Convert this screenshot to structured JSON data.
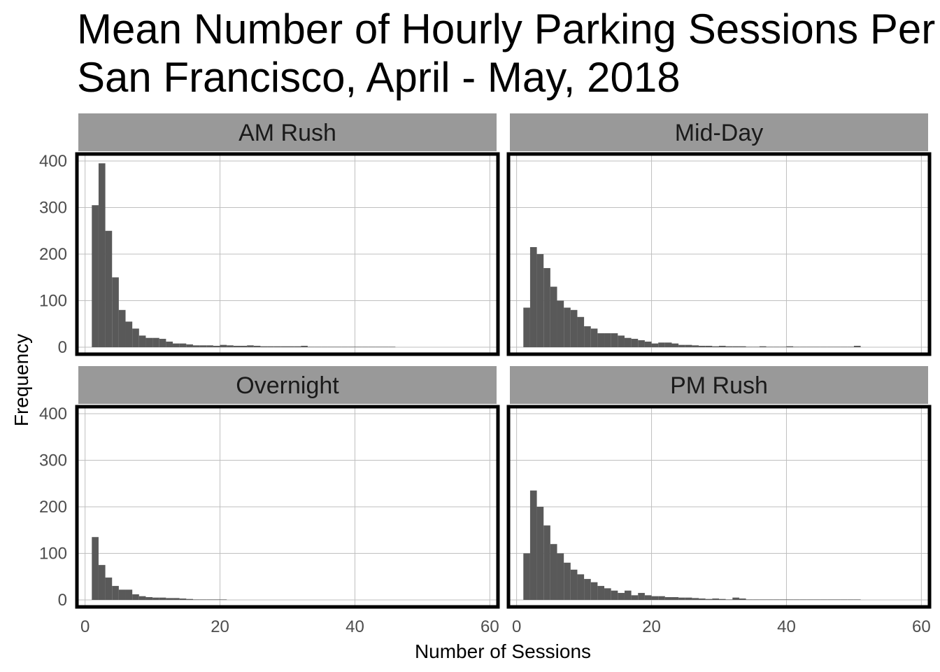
{
  "title_line1": "Mean Number of Hourly Parking Sessions Per Meter",
  "title_line2": "San Francisco, April - May, 2018",
  "colors": {
    "bar": "#595959",
    "strip": "#999999",
    "grid": "#bfbfbf",
    "border": "#000000"
  },
  "chart_data": {
    "type": "bar",
    "xlabel": "Number of Sessions",
    "ylabel": "Frequency",
    "xlim": [
      -1,
      61
    ],
    "ylim": [
      -12,
      412
    ],
    "x_ticks": [
      0,
      20,
      40,
      60
    ],
    "y_ticks": [
      0,
      100,
      200,
      300,
      400
    ],
    "bin_width": 1,
    "bin_starts": [
      1,
      2,
      3,
      4,
      5,
      6,
      7,
      8,
      9,
      10,
      11,
      12,
      13,
      14,
      15,
      16,
      17,
      18,
      19,
      20,
      21,
      22,
      23,
      24,
      25,
      26,
      27,
      28,
      29,
      30,
      31,
      32,
      33,
      34,
      35,
      36,
      37,
      38,
      39,
      40,
      41,
      42,
      43,
      44,
      45,
      46,
      47,
      48,
      49,
      50,
      51,
      52,
      53,
      54,
      55,
      56,
      57,
      58,
      59
    ],
    "panels": [
      {
        "name": "AM Rush",
        "values": [
          305,
          395,
          250,
          150,
          80,
          55,
          40,
          25,
          20,
          20,
          18,
          12,
          8,
          8,
          6,
          4,
          4,
          4,
          3,
          5,
          4,
          3,
          3,
          4,
          3,
          2,
          2,
          2,
          2,
          2,
          2,
          3,
          1,
          1,
          1,
          1,
          1,
          1,
          1,
          1,
          1,
          1,
          1,
          1,
          1,
          0,
          0,
          0,
          0,
          0,
          0,
          0,
          0,
          0,
          0,
          0,
          0,
          0,
          0
        ]
      },
      {
        "name": "Mid-Day",
        "values": [
          85,
          215,
          200,
          170,
          130,
          100,
          85,
          80,
          65,
          45,
          40,
          30,
          30,
          30,
          25,
          20,
          18,
          15,
          12,
          8,
          10,
          10,
          8,
          5,
          5,
          4,
          3,
          3,
          2,
          3,
          2,
          2,
          2,
          1,
          1,
          2,
          1,
          1,
          1,
          2,
          1,
          1,
          1,
          1,
          1,
          1,
          1,
          1,
          1,
          3,
          0,
          0,
          0,
          0,
          0,
          0,
          0,
          0,
          0
        ]
      },
      {
        "name": "Overnight",
        "values": [
          135,
          75,
          48,
          30,
          22,
          22,
          12,
          8,
          6,
          5,
          5,
          4,
          4,
          3,
          2,
          1,
          1,
          1,
          1,
          1,
          0,
          0,
          0,
          0,
          0,
          0,
          0,
          0,
          0,
          0,
          0,
          0,
          0,
          0,
          0,
          0,
          0,
          0,
          0,
          0,
          0,
          0,
          0,
          0,
          0,
          0,
          0,
          0,
          0,
          0,
          0,
          0,
          0,
          0,
          0,
          0,
          0,
          0,
          0
        ]
      },
      {
        "name": "PM Rush",
        "values": [
          100,
          235,
          200,
          160,
          120,
          100,
          80,
          65,
          55,
          45,
          38,
          30,
          25,
          20,
          15,
          20,
          10,
          15,
          10,
          8,
          8,
          6,
          6,
          5,
          5,
          4,
          3,
          2,
          3,
          2,
          1,
          5,
          3,
          1,
          1,
          1,
          1,
          1,
          1,
          1,
          1,
          1,
          1,
          1,
          1,
          1,
          1,
          1,
          1,
          1,
          0,
          0,
          0,
          0,
          0,
          0,
          0,
          0,
          0
        ]
      }
    ]
  }
}
